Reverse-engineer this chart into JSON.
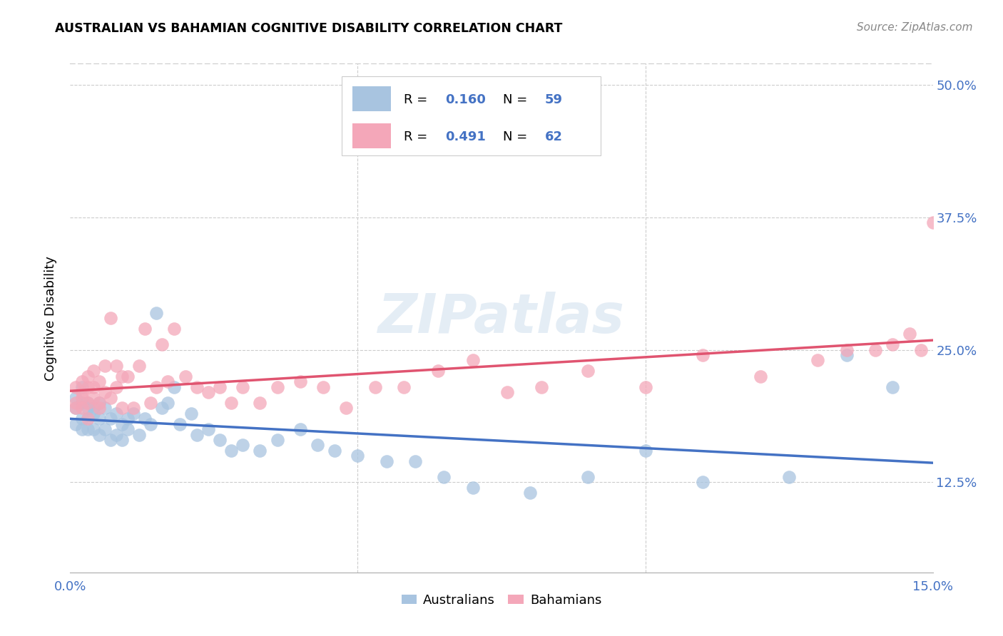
{
  "title": "AUSTRALIAN VS BAHAMIAN COGNITIVE DISABILITY CORRELATION CHART",
  "source": "Source: ZipAtlas.com",
  "ylabel": "Cognitive Disability",
  "color_aus": "#a8c4e0",
  "color_bah": "#f4a7b9",
  "line_color_aus": "#4472c4",
  "line_color_bah": "#e05470",
  "background_color": "#ffffff",
  "grid_color": "#cccccc",
  "watermark": "ZIPatlas",
  "legend_r1": "0.160",
  "legend_n1": "59",
  "legend_r2": "0.491",
  "legend_n2": "62",
  "xlim": [
    0.0,
    0.15
  ],
  "ylim": [
    0.04,
    0.52
  ],
  "yticks": [
    0.125,
    0.25,
    0.375,
    0.5
  ],
  "ytick_labels": [
    "12.5%",
    "25.0%",
    "37.5%",
    "50.0%"
  ],
  "xticks": [
    0.0,
    0.05,
    0.1,
    0.15
  ],
  "xtick_labels": [
    "0.0%",
    "",
    "",
    "15.0%"
  ],
  "aus_x": [
    0.001,
    0.001,
    0.001,
    0.002,
    0.002,
    0.002,
    0.002,
    0.003,
    0.003,
    0.003,
    0.003,
    0.004,
    0.004,
    0.004,
    0.005,
    0.005,
    0.005,
    0.006,
    0.006,
    0.007,
    0.007,
    0.008,
    0.008,
    0.009,
    0.009,
    0.01,
    0.01,
    0.011,
    0.012,
    0.013,
    0.014,
    0.015,
    0.016,
    0.017,
    0.018,
    0.019,
    0.021,
    0.022,
    0.024,
    0.026,
    0.028,
    0.03,
    0.033,
    0.036,
    0.04,
    0.043,
    0.046,
    0.05,
    0.055,
    0.06,
    0.065,
    0.07,
    0.08,
    0.09,
    0.1,
    0.11,
    0.125,
    0.135,
    0.143
  ],
  "aus_y": [
    0.195,
    0.18,
    0.205,
    0.2,
    0.185,
    0.175,
    0.215,
    0.195,
    0.185,
    0.2,
    0.175,
    0.19,
    0.175,
    0.195,
    0.185,
    0.17,
    0.2,
    0.175,
    0.195,
    0.185,
    0.165,
    0.19,
    0.17,
    0.18,
    0.165,
    0.185,
    0.175,
    0.19,
    0.17,
    0.185,
    0.18,
    0.285,
    0.195,
    0.2,
    0.215,
    0.18,
    0.19,
    0.17,
    0.175,
    0.165,
    0.155,
    0.16,
    0.155,
    0.165,
    0.175,
    0.16,
    0.155,
    0.15,
    0.145,
    0.145,
    0.13,
    0.12,
    0.115,
    0.13,
    0.155,
    0.125,
    0.13,
    0.245,
    0.215
  ],
  "bah_x": [
    0.001,
    0.001,
    0.001,
    0.002,
    0.002,
    0.002,
    0.002,
    0.003,
    0.003,
    0.003,
    0.003,
    0.004,
    0.004,
    0.004,
    0.005,
    0.005,
    0.005,
    0.006,
    0.006,
    0.007,
    0.007,
    0.008,
    0.008,
    0.009,
    0.009,
    0.01,
    0.011,
    0.012,
    0.013,
    0.014,
    0.015,
    0.016,
    0.017,
    0.018,
    0.02,
    0.022,
    0.024,
    0.026,
    0.028,
    0.03,
    0.033,
    0.036,
    0.04,
    0.044,
    0.048,
    0.053,
    0.058,
    0.064,
    0.07,
    0.076,
    0.082,
    0.09,
    0.1,
    0.11,
    0.12,
    0.13,
    0.135,
    0.14,
    0.143,
    0.146,
    0.148,
    0.15
  ],
  "bah_y": [
    0.215,
    0.2,
    0.195,
    0.21,
    0.195,
    0.22,
    0.205,
    0.225,
    0.2,
    0.215,
    0.185,
    0.23,
    0.205,
    0.215,
    0.22,
    0.195,
    0.2,
    0.21,
    0.235,
    0.205,
    0.28,
    0.215,
    0.235,
    0.225,
    0.195,
    0.225,
    0.195,
    0.235,
    0.27,
    0.2,
    0.215,
    0.255,
    0.22,
    0.27,
    0.225,
    0.215,
    0.21,
    0.215,
    0.2,
    0.215,
    0.2,
    0.215,
    0.22,
    0.215,
    0.195,
    0.215,
    0.215,
    0.23,
    0.24,
    0.21,
    0.215,
    0.23,
    0.215,
    0.245,
    0.225,
    0.24,
    0.25,
    0.25,
    0.255,
    0.265,
    0.25,
    0.37
  ]
}
